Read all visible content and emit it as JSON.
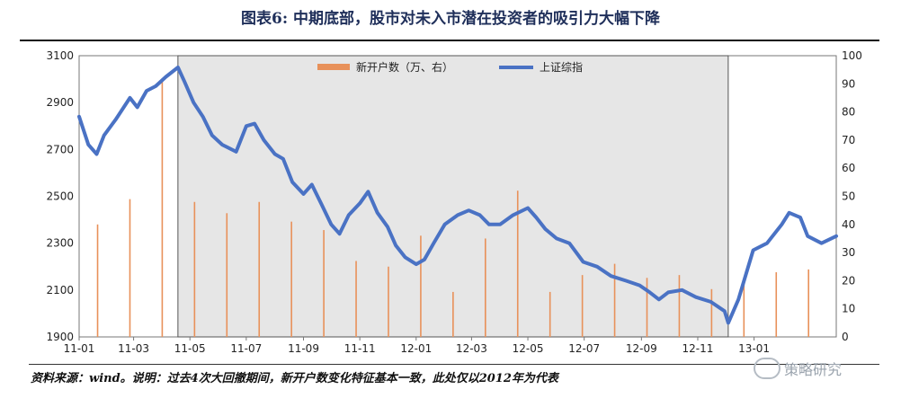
{
  "header": {
    "title": "图表6:  中期底部，股市对未入市潜在投资者的吸引力大幅下降"
  },
  "footer": {
    "source": "资料来源：wind。说明：过去4次大回撤期间，新开户数变化特征基本一致，此处仅以2012年为代表"
  },
  "watermark": {
    "label": "策略研究"
  },
  "colors": {
    "bars": "#e8915a",
    "line": "#4a72c4",
    "shade": "#e6e6e6",
    "frame": "#555555"
  },
  "chart_data": {
    "type": "bar+line",
    "x_tick_labels": [
      "11-01",
      "11-03",
      "11-05",
      "11-07",
      "11-09",
      "11-11",
      "12-01",
      "12-03",
      "12-05",
      "12-07",
      "12-09",
      "12-11",
      "13-01"
    ],
    "x_range": [
      "2011-01-01",
      "2013-03-31"
    ],
    "shaded_range": [
      "2011-04-18",
      "2012-12-04"
    ],
    "left_axis": {
      "min": 1900,
      "max": 3100,
      "ticks": [
        1900,
        2100,
        2300,
        2500,
        2700,
        2900,
        3100
      ]
    },
    "right_axis": {
      "min": 0,
      "max": 100,
      "ticks": [
        0,
        10,
        20,
        30,
        40,
        50,
        60,
        70,
        80,
        90,
        100
      ]
    },
    "legend": {
      "position": "top-center"
    },
    "series": [
      {
        "name": "新开户数（万、右）",
        "type": "bar",
        "axis": "right",
        "x": [
          "2011-01-21",
          "2011-02-25",
          "2011-04-01",
          "2011-05-06",
          "2011-06-10",
          "2011-07-15",
          "2011-08-19",
          "2011-09-23",
          "2011-10-28",
          "2011-12-02",
          "2012-01-06",
          "2012-02-10",
          "2012-03-16",
          "2012-04-20",
          "2012-05-25",
          "2012-06-29",
          "2012-08-03",
          "2012-09-07",
          "2012-10-12",
          "2012-11-16",
          "2012-12-21",
          "2013-01-25",
          "2013-03-01"
        ],
        "values": [
          40,
          49,
          92,
          48,
          44,
          48,
          41,
          38,
          27,
          25,
          36,
          16,
          35,
          52,
          16,
          22,
          26,
          21,
          22,
          17,
          20,
          23,
          24
        ]
      },
      {
        "name": "上证综指",
        "type": "line",
        "axis": "left",
        "x": [
          "2011-01-01",
          "2011-01-11",
          "2011-01-20",
          "2011-01-28",
          "2011-02-10",
          "2011-02-25",
          "2011-03-05",
          "2011-03-15",
          "2011-03-25",
          "2011-04-05",
          "2011-04-18",
          "2011-04-25",
          "2011-05-05",
          "2011-05-15",
          "2011-05-25",
          "2011-06-05",
          "2011-06-20",
          "2011-07-01",
          "2011-07-10",
          "2011-07-20",
          "2011-08-01",
          "2011-08-10",
          "2011-08-20",
          "2011-09-01",
          "2011-09-10",
          "2011-09-20",
          "2011-10-01",
          "2011-10-10",
          "2011-10-20",
          "2011-11-01",
          "2011-11-10",
          "2011-11-20",
          "2011-12-01",
          "2011-12-10",
          "2011-12-20",
          "2012-01-01",
          "2012-01-10",
          "2012-01-20",
          "2012-02-01",
          "2012-02-15",
          "2012-02-27",
          "2012-03-10",
          "2012-03-20",
          "2012-04-01",
          "2012-04-15",
          "2012-05-01",
          "2012-05-10",
          "2012-05-20",
          "2012-06-01",
          "2012-06-15",
          "2012-06-30",
          "2012-07-15",
          "2012-07-30",
          "2012-08-15",
          "2012-08-30",
          "2012-09-10",
          "2012-09-20",
          "2012-09-30",
          "2012-10-15",
          "2012-10-30",
          "2012-11-15",
          "2012-11-30",
          "2012-12-04",
          "2012-12-15",
          "2012-12-31",
          "2013-01-15",
          "2013-01-31",
          "2013-02-08",
          "2013-02-20",
          "2013-02-28",
          "2013-03-15",
          "2013-03-31"
        ],
        "values": [
          2840,
          2720,
          2680,
          2760,
          2830,
          2920,
          2880,
          2950,
          2970,
          3010,
          3050,
          2990,
          2900,
          2840,
          2760,
          2720,
          2690,
          2800,
          2810,
          2740,
          2680,
          2660,
          2560,
          2510,
          2550,
          2470,
          2380,
          2340,
          2420,
          2470,
          2520,
          2430,
          2370,
          2290,
          2240,
          2210,
          2230,
          2300,
          2380,
          2420,
          2440,
          2420,
          2380,
          2380,
          2420,
          2450,
          2410,
          2360,
          2320,
          2300,
          2220,
          2200,
          2160,
          2140,
          2120,
          2090,
          2060,
          2090,
          2100,
          2070,
          2050,
          2010,
          1960,
          2060,
          2270,
          2300,
          2380,
          2430,
          2410,
          2330,
          2300,
          2330
        ]
      }
    ]
  }
}
